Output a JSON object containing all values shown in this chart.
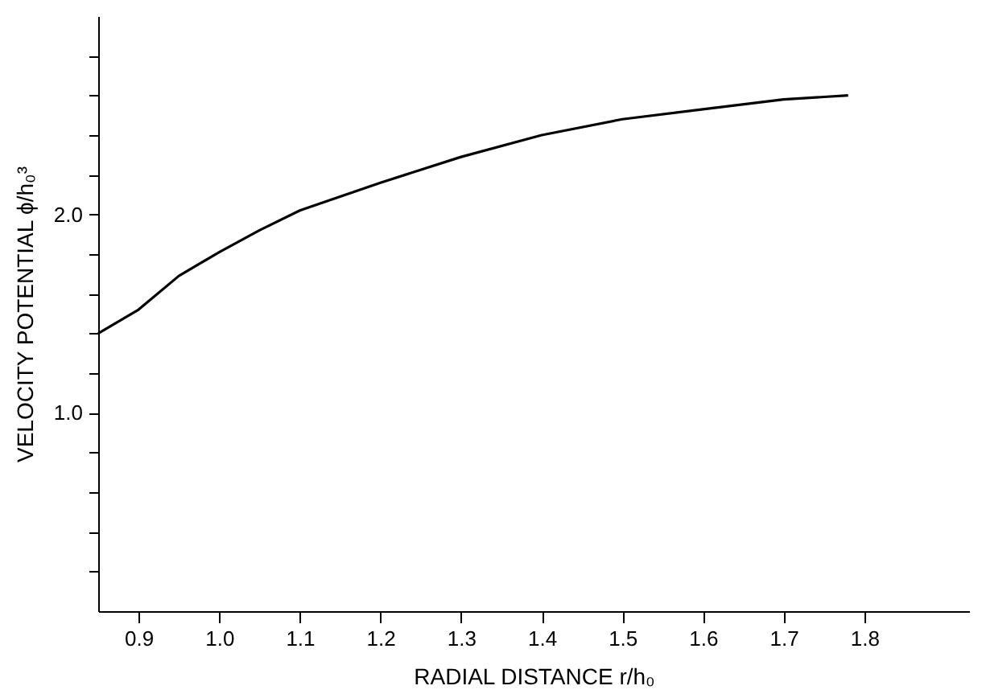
{
  "chart_data": {
    "type": "line",
    "xlabel": "RADIAL DISTANCE r/h₀",
    "ylabel": "VELOCITY POTENTIAL ϕ/h₀³",
    "x": [
      0.85,
      0.9,
      0.95,
      1.0,
      1.05,
      1.1,
      1.2,
      1.3,
      1.4,
      1.5,
      1.6,
      1.7,
      1.78
    ],
    "series": [
      {
        "color": "#000000",
        "values": [
          1.4,
          1.52,
          1.69,
          1.81,
          1.92,
          2.02,
          2.16,
          2.29,
          2.4,
          2.48,
          2.53,
          2.58,
          2.6
        ]
      }
    ],
    "xlim": [
      0.85,
      1.93
    ],
    "xticks": [
      0.9,
      {
        "value": 1.0,
        "label": "1.0"
      },
      1.1,
      1.2,
      1.3,
      1.4,
      1.5,
      1.6,
      1.7,
      1.8
    ],
    "ylim": [
      0,
      3.0
    ],
    "yticks": [
      {
        "value": 0.2,
        "label": null
      },
      {
        "value": 0.4,
        "label": null
      },
      {
        "value": 0.6,
        "label": null
      },
      {
        "value": 0.8,
        "label": null
      },
      {
        "value": 1.0,
        "label": "1.0"
      },
      {
        "value": 1.2,
        "label": null
      },
      {
        "value": 1.4,
        "label": null
      },
      {
        "value": 1.6,
        "label": null
      },
      {
        "value": 1.8,
        "label": null
      },
      {
        "value": 2.0,
        "label": "2.0"
      },
      {
        "value": 2.2,
        "label": null
      },
      {
        "value": 2.4,
        "label": null
      },
      {
        "value": 2.6,
        "label": null
      },
      {
        "value": 2.8,
        "label": null
      }
    ],
    "grid": false,
    "marker": "none",
    "line_style": "solid"
  }
}
